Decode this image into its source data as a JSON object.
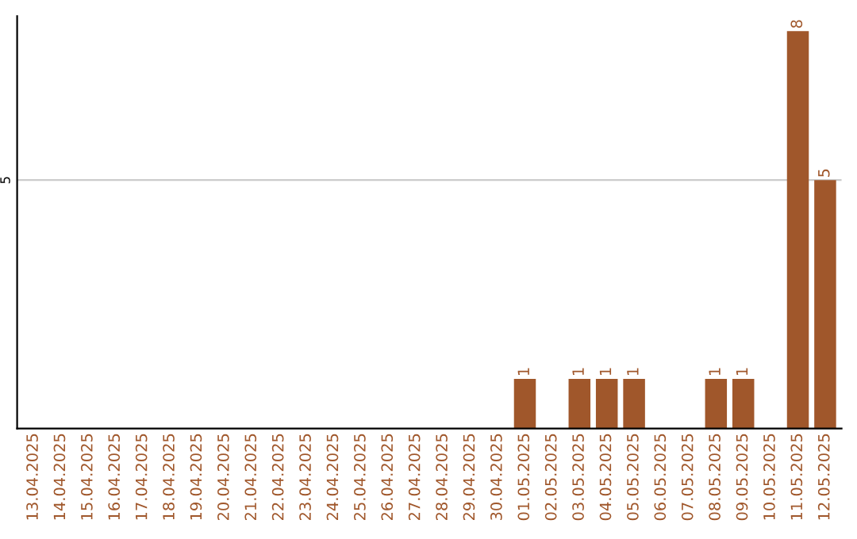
{
  "chart_data": {
    "type": "bar",
    "categories": [
      "13.04.2025",
      "14.04.2025",
      "15.04.2025",
      "16.04.2025",
      "17.04.2025",
      "18.04.2025",
      "19.04.2025",
      "20.04.2025",
      "21.04.2025",
      "22.04.2025",
      "23.04.2025",
      "24.04.2025",
      "25.04.2025",
      "26.04.2025",
      "27.04.2025",
      "28.04.2025",
      "29.04.2025",
      "30.04.2025",
      "01.05.2025",
      "02.05.2025",
      "03.05.2025",
      "04.05.2025",
      "05.05.2025",
      "06.05.2025",
      "07.05.2025",
      "08.05.2025",
      "09.05.2025",
      "10.05.2025",
      "11.05.2025",
      "12.05.2025"
    ],
    "values": [
      null,
      null,
      null,
      null,
      null,
      null,
      null,
      null,
      null,
      null,
      null,
      null,
      null,
      null,
      null,
      null,
      null,
      null,
      1,
      null,
      1,
      1,
      1,
      null,
      null,
      1,
      1,
      null,
      8,
      5
    ],
    "value_labels": [
      null,
      null,
      null,
      null,
      null,
      null,
      null,
      null,
      null,
      null,
      null,
      null,
      null,
      null,
      null,
      null,
      null,
      null,
      "1",
      null,
      "1",
      "1",
      "1",
      null,
      null,
      "1",
      "1",
      null,
      "8",
      "5"
    ],
    "color": "#a0572b",
    "ylim": [
      0,
      8.3
    ],
    "yticks": [
      5
    ],
    "grid": "y"
  }
}
